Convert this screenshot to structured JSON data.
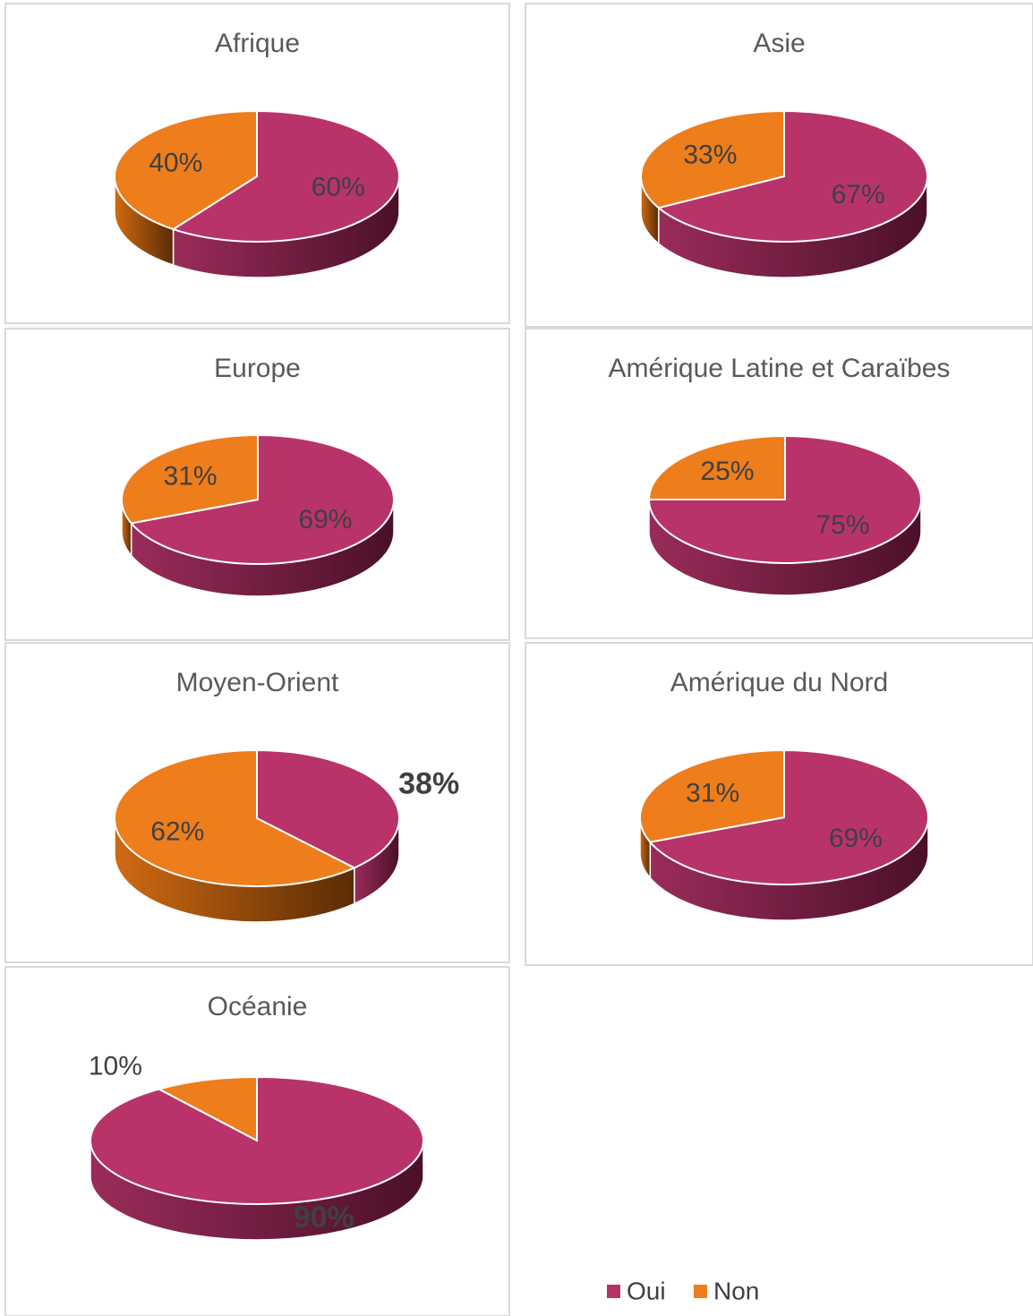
{
  "chart_data": [
    {
      "type": "pie",
      "title": "Afrique",
      "values": [
        60,
        40
      ],
      "value_labels": [
        "60%",
        "40%"
      ]
    },
    {
      "type": "pie",
      "title": "Asie",
      "values": [
        67,
        33
      ],
      "value_labels": [
        "67%",
        "33%"
      ]
    },
    {
      "type": "pie",
      "title": "Europe",
      "values": [
        69,
        31
      ],
      "value_labels": [
        "69%",
        "31%"
      ]
    },
    {
      "type": "pie",
      "title": "Amérique Latine et Caraïbes",
      "values": [
        75,
        25
      ],
      "value_labels": [
        "75%",
        "25%"
      ]
    },
    {
      "type": "pie",
      "title": "Moyen-Orient",
      "values": [
        38,
        62
      ],
      "value_labels": [
        "38%",
        "62%"
      ]
    },
    {
      "type": "pie",
      "title": "Amérique du Nord",
      "values": [
        69,
        31
      ],
      "value_labels": [
        "69%",
        "31%"
      ]
    },
    {
      "type": "pie",
      "title": "Océanie",
      "values": [
        90,
        10
      ],
      "value_labels": [
        "90%",
        "10%"
      ]
    }
  ],
  "legend": {
    "categories": [
      "Oui",
      "Non"
    ],
    "colors": [
      "#b8336a",
      "#ee7d1c"
    ]
  }
}
